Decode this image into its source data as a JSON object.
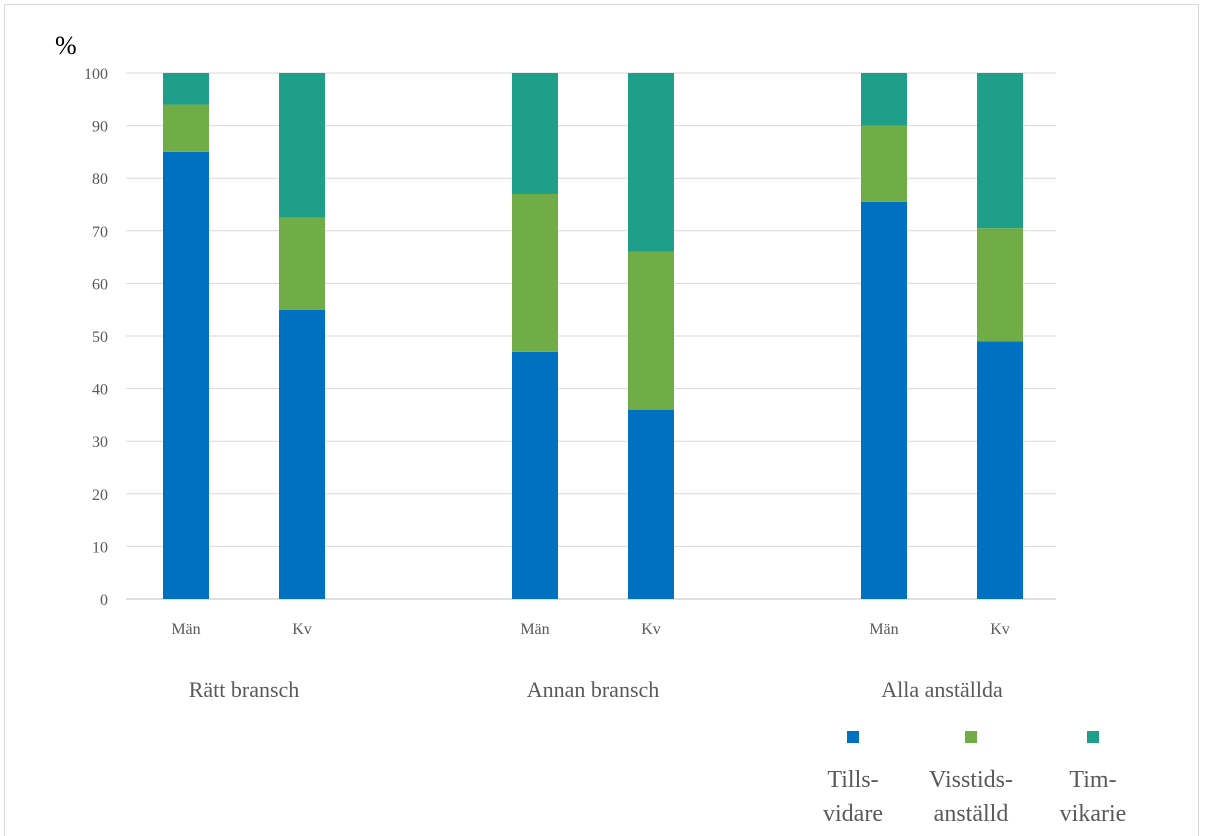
{
  "chart_data": {
    "type": "bar",
    "stacked": true,
    "ylabel": "%",
    "ylim": [
      0,
      100
    ],
    "yticks": [
      0,
      10,
      20,
      30,
      40,
      50,
      60,
      70,
      80,
      90,
      100
    ],
    "grid": true,
    "legend_position": "bottom-right",
    "groups": [
      {
        "label": "Rätt bransch",
        "categories": [
          "Män",
          "Kv"
        ]
      },
      {
        "label": "Annan bransch",
        "categories": [
          "Män",
          "Kv"
        ]
      },
      {
        "label": "Alla anställda",
        "categories": [
          "Män",
          "Kv"
        ]
      }
    ],
    "series": [
      {
        "name": "Tills-\nvidare",
        "name_lines": [
          "Tills-",
          "vidare"
        ],
        "color": "#0070c0",
        "values": [
          85,
          55,
          47,
          36,
          75.5,
          49
        ]
      },
      {
        "name": "Visstids-\nanställd",
        "name_lines": [
          "Visstids-",
          "anställd"
        ],
        "color": "#70ad47",
        "values": [
          9,
          17.5,
          30,
          30,
          14.5,
          21.5
        ]
      },
      {
        "name": "Tim-\nvikarie",
        "name_lines": [
          "Tim-",
          "vikarie"
        ],
        "color": "#1f9e89",
        "values": [
          6,
          27.5,
          23,
          34,
          10,
          29.5
        ]
      }
    ]
  }
}
